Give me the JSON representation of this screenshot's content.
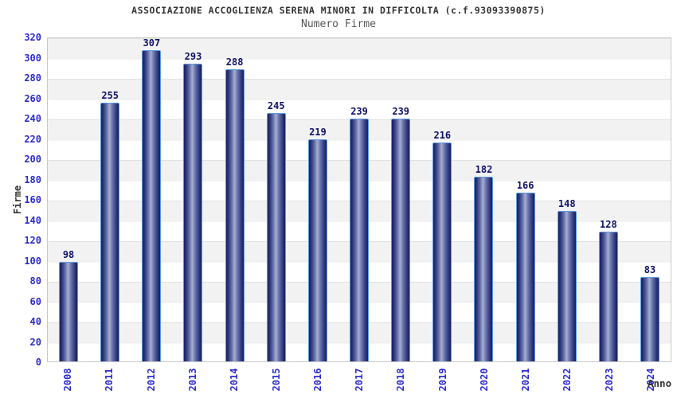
{
  "chart_data": {
    "type": "bar",
    "title": "ASSOCIAZIONE ACCOGLIENZA SERENA MINORI IN DIFFICOLTA (c.f.93093390875)",
    "subtitle": "Numero Firme",
    "xlabel": "Anno",
    "ylabel": "Firme",
    "categories": [
      "2008",
      "2011",
      "2012",
      "2013",
      "2014",
      "2015",
      "2016",
      "2017",
      "2018",
      "2019",
      "2020",
      "2021",
      "2022",
      "2023",
      "2024"
    ],
    "values": [
      98,
      255,
      307,
      293,
      288,
      245,
      219,
      239,
      239,
      216,
      182,
      166,
      148,
      128,
      83
    ],
    "ylim": [
      0,
      320
    ],
    "ytick_step": 20,
    "legend": "none",
    "grid": "horizontal bands alternating gray/white every 20 units",
    "colors": {
      "bar_fill_dark": "#181f5e",
      "bar_fill_light": "#a6afd0",
      "bar_border": "#5e9ae0",
      "axis_tick_label": "#2b2bd0",
      "value_label": "#10106a",
      "title": "#333333",
      "subtitle": "#555555",
      "band_gray": "#f2f2f2",
      "band_white": "#ffffff",
      "plot_border": "#c9c9c9"
    }
  }
}
